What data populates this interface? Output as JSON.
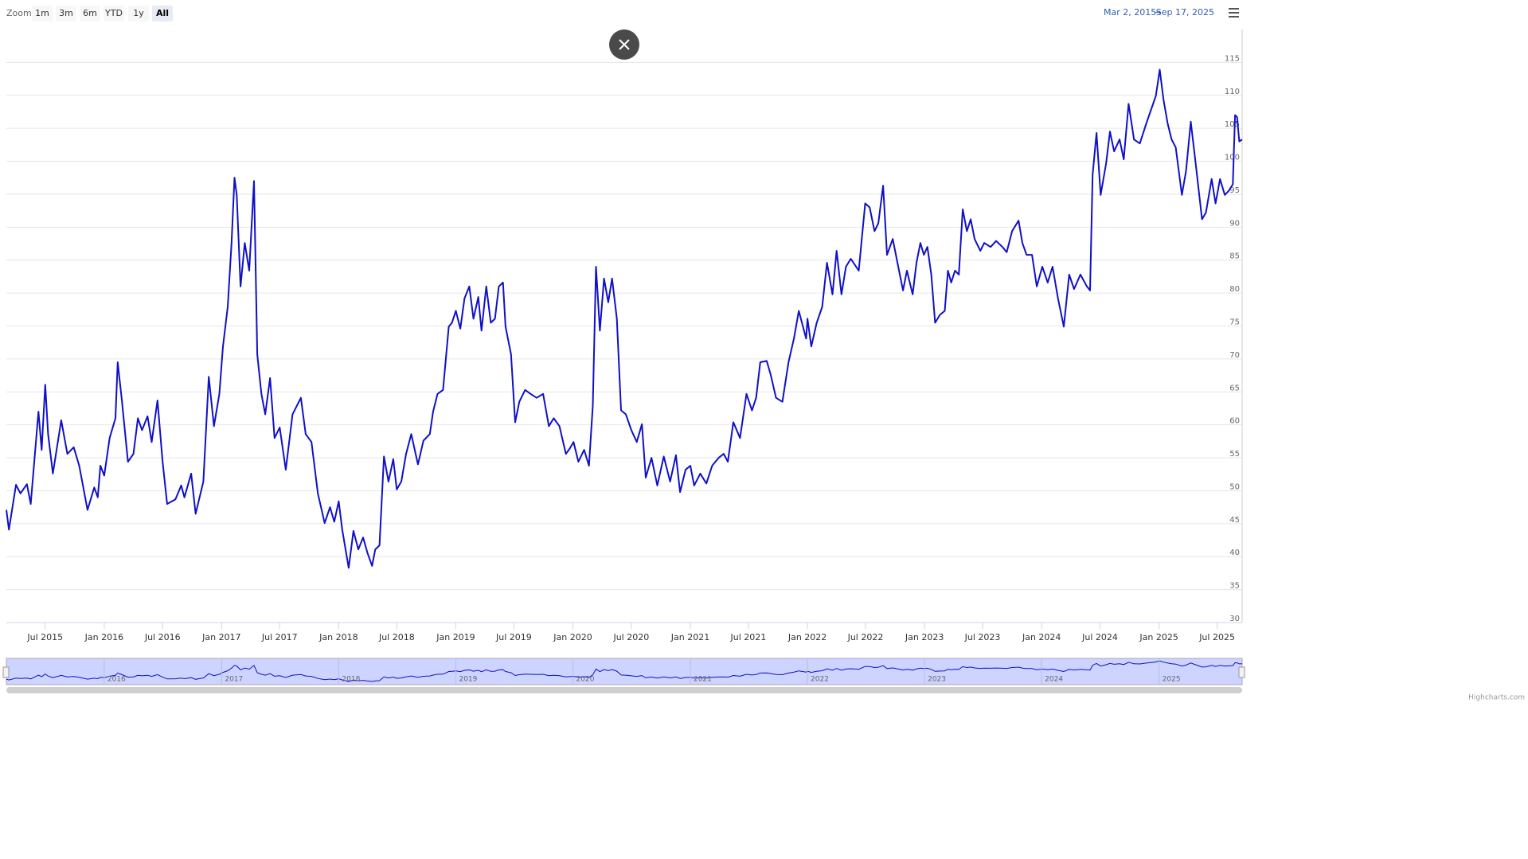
{
  "chart_data": {
    "type": "line",
    "range_selector": {
      "label": "Zoom",
      "buttons": [
        "1m",
        "3m",
        "6m",
        "YTD",
        "1y",
        "All"
      ],
      "selected": 5
    },
    "range_labels": [
      "Mar 2, 2015",
      "→",
      "Sep 17, 2025"
    ],
    "credit": "Highcharts.com",
    "xlim": [
      "2015-03-02",
      "2025-09-17"
    ],
    "ylim": [
      30,
      120
    ],
    "yticks": [
      30,
      35,
      40,
      45,
      50,
      55,
      60,
      65,
      70,
      75,
      80,
      85,
      90,
      95,
      100,
      105,
      110,
      115
    ],
    "grid": true,
    "xticks": [
      {
        "value": "2015-07-01",
        "label": "Jul 2015"
      },
      {
        "value": "2016-01-01",
        "label": "Jan 2016"
      },
      {
        "value": "2016-07-01",
        "label": "Jul 2016"
      },
      {
        "value": "2017-01-01",
        "label": "Jan 2017"
      },
      {
        "value": "2017-07-01",
        "label": "Jul 2017"
      },
      {
        "value": "2018-01-01",
        "label": "Jan 2018"
      },
      {
        "value": "2018-07-01",
        "label": "Jul 2018"
      },
      {
        "value": "2019-01-01",
        "label": "Jan 2019"
      },
      {
        "value": "2019-07-01",
        "label": "Jul 2019"
      },
      {
        "value": "2020-01-01",
        "label": "Jan 2020"
      },
      {
        "value": "2020-07-01",
        "label": "Jul 2020"
      },
      {
        "value": "2021-01-01",
        "label": "Jan 2021"
      },
      {
        "value": "2021-07-01",
        "label": "Jul 2021"
      },
      {
        "value": "2022-01-01",
        "label": "Jan 2022"
      },
      {
        "value": "2022-07-01",
        "label": "Jul 2022"
      },
      {
        "value": "2023-01-01",
        "label": "Jan 2023"
      },
      {
        "value": "2023-07-01",
        "label": "Jul 2023"
      },
      {
        "value": "2024-01-01",
        "label": "Jan 2024"
      },
      {
        "value": "2024-07-01",
        "label": "Jul 2024"
      },
      {
        "value": "2025-01-01",
        "label": "Jan 2025"
      },
      {
        "value": "2025-07-01",
        "label": "Jul 2025"
      }
    ],
    "navigator_ticks": [
      {
        "value": "2016-01-01",
        "label": "2016"
      },
      {
        "value": "2017-01-01",
        "label": "2017"
      },
      {
        "value": "2018-01-01",
        "label": "2018"
      },
      {
        "value": "2019-01-01",
        "label": "2019"
      },
      {
        "value": "2020-01-01",
        "label": "2020"
      },
      {
        "value": "2021-01-01",
        "label": "2021"
      },
      {
        "value": "2022-01-01",
        "label": "2022"
      },
      {
        "value": "2023-01-01",
        "label": "2023"
      },
      {
        "value": "2024-01-01",
        "label": "2024"
      },
      {
        "value": "2025-01-01",
        "label": "2025"
      }
    ],
    "series": [
      {
        "color": "#1010c8",
        "x": [
          "2015-03-02",
          "2015-03-10",
          "2015-04-01",
          "2015-04-15",
          "2015-05-05",
          "2015-05-17",
          "2015-06-10",
          "2015-06-20",
          "2015-07-01",
          "2015-07-10",
          "2015-07-25",
          "2015-08-20",
          "2015-09-08",
          "2015-09-28",
          "2015-10-15",
          "2015-11-10",
          "2015-12-01",
          "2015-12-12",
          "2015-12-20",
          "2016-01-01",
          "2016-01-18",
          "2016-02-05",
          "2016-02-12",
          "2016-02-25",
          "2016-03-15",
          "2016-04-01",
          "2016-04-15",
          "2016-04-28",
          "2016-05-15",
          "2016-05-28",
          "2016-06-15",
          "2016-07-01",
          "2016-07-15",
          "2016-08-10",
          "2016-08-28",
          "2016-09-07",
          "2016-09-28",
          "2016-10-12",
          "2016-11-05",
          "2016-11-22",
          "2016-12-08",
          "2016-12-25",
          "2017-01-05",
          "2017-01-20",
          "2017-02-01",
          "2017-02-10",
          "2017-02-17",
          "2017-03-01",
          "2017-03-14",
          "2017-03-28",
          "2017-04-12",
          "2017-04-22",
          "2017-05-05",
          "2017-05-17",
          "2017-06-01",
          "2017-06-15",
          "2017-07-01",
          "2017-07-20",
          "2017-08-10",
          "2017-09-05",
          "2017-09-20",
          "2017-10-08",
          "2017-10-28",
          "2017-11-18",
          "2017-12-05",
          "2017-12-18",
          "2018-01-01",
          "2018-01-12",
          "2018-02-01",
          "2018-02-16",
          "2018-03-03",
          "2018-03-18",
          "2018-04-01",
          "2018-04-15",
          "2018-04-25",
          "2018-05-08",
          "2018-05-22",
          "2018-06-05",
          "2018-06-20",
          "2018-07-01",
          "2018-07-15",
          "2018-07-30",
          "2018-08-15",
          "2018-09-05",
          "2018-09-22",
          "2018-10-12",
          "2018-10-22",
          "2018-11-05",
          "2018-11-22",
          "2018-12-01",
          "2018-12-10",
          "2018-12-20",
          "2019-01-01",
          "2019-01-15",
          "2019-01-28",
          "2019-02-12",
          "2019-02-25",
          "2019-03-12",
          "2019-03-22",
          "2019-04-06",
          "2019-04-20",
          "2019-05-03",
          "2019-05-15",
          "2019-05-28",
          "2019-06-05",
          "2019-06-22",
          "2019-07-05",
          "2019-07-18",
          "2019-08-05",
          "2019-08-22",
          "2019-09-10",
          "2019-09-30",
          "2019-10-18",
          "2019-11-02",
          "2019-11-20",
          "2019-12-10",
          "2019-12-22",
          "2020-01-03",
          "2020-01-18",
          "2020-02-05",
          "2020-02-20",
          "2020-03-03",
          "2020-03-13",
          "2020-03-25",
          "2020-04-07",
          "2020-04-20",
          "2020-05-02",
          "2020-05-17",
          "2020-05-30",
          "2020-06-14",
          "2020-07-01",
          "2020-07-18",
          "2020-08-03",
          "2020-08-15",
          "2020-09-02",
          "2020-09-20",
          "2020-10-10",
          "2020-10-30",
          "2020-11-17",
          "2020-11-30",
          "2020-12-17",
          "2021-01-01",
          "2021-01-13",
          "2021-02-01",
          "2021-02-20",
          "2021-03-10",
          "2021-03-30",
          "2021-04-15",
          "2021-04-28",
          "2021-05-15",
          "2021-06-05",
          "2021-06-25",
          "2021-07-12",
          "2021-07-25",
          "2021-08-07",
          "2021-08-27",
          "2021-09-08",
          "2021-09-25",
          "2021-10-15",
          "2021-11-03",
          "2021-11-20",
          "2021-12-05",
          "2021-12-28",
          "2022-01-01",
          "2022-01-13",
          "2022-01-30",
          "2022-02-16",
          "2022-03-03",
          "2022-03-20",
          "2022-04-02",
          "2022-04-17",
          "2022-05-01",
          "2022-05-16",
          "2022-06-10",
          "2022-06-30",
          "2022-07-14",
          "2022-07-29",
          "2022-08-10",
          "2022-08-25",
          "2022-09-06",
          "2022-09-24",
          "2022-10-11",
          "2022-10-26",
          "2022-11-07",
          "2022-11-25",
          "2022-12-07",
          "2022-12-19",
          "2022-12-30",
          "2023-01-10",
          "2023-01-22",
          "2023-02-03",
          "2023-02-18",
          "2023-03-05",
          "2023-03-15",
          "2023-03-25",
          "2023-04-06",
          "2023-04-18",
          "2023-04-30",
          "2023-05-13",
          "2023-05-25",
          "2023-06-06",
          "2023-06-24",
          "2023-07-06",
          "2023-07-26",
          "2023-08-12",
          "2023-09-01",
          "2023-09-14",
          "2023-10-01",
          "2023-10-21",
          "2023-11-02",
          "2023-11-15",
          "2023-12-02",
          "2023-12-17",
          "2024-01-03",
          "2024-01-20",
          "2024-02-04",
          "2024-02-21",
          "2024-03-10",
          "2024-03-27",
          "2024-04-11",
          "2024-05-01",
          "2024-05-21",
          "2024-05-31",
          "2024-06-08",
          "2024-06-20",
          "2024-07-03",
          "2024-07-20",
          "2024-08-01",
          "2024-08-14",
          "2024-08-31",
          "2024-09-13",
          "2024-09-28",
          "2024-10-15",
          "2024-11-02",
          "2024-11-22",
          "2024-12-09",
          "2024-12-22",
          "2025-01-03",
          "2025-01-15",
          "2025-01-28",
          "2025-02-09",
          "2025-02-22",
          "2025-03-13",
          "2025-03-26",
          "2025-04-10",
          "2025-04-25",
          "2025-05-15",
          "2025-05-27",
          "2025-06-14",
          "2025-06-26",
          "2025-07-10",
          "2025-07-25",
          "2025-08-06",
          "2025-08-19",
          "2025-08-26",
          "2025-09-01",
          "2025-09-08",
          "2025-09-17"
        ],
        "values": [
          47.1,
          44.1,
          50.9,
          49.6,
          51.0,
          48.0,
          62.0,
          56.2,
          66.1,
          58.6,
          52.6,
          60.7,
          55.6,
          56.6,
          53.8,
          47.1,
          50.5,
          49.0,
          53.8,
          52.3,
          58.0,
          61.0,
          69.5,
          63.8,
          54.4,
          55.6,
          61.0,
          59.2,
          61.3,
          57.4,
          63.7,
          54.4,
          48.0,
          48.7,
          50.8,
          49.0,
          52.6,
          46.5,
          51.4,
          67.3,
          59.8,
          64.7,
          71.9,
          77.9,
          87.6,
          97.5,
          94.9,
          81.0,
          87.6,
          83.4,
          97.0,
          70.7,
          64.7,
          61.6,
          67.1,
          58.0,
          59.6,
          53.2,
          61.6,
          64.1,
          58.6,
          57.4,
          49.6,
          45.1,
          47.5,
          45.3,
          48.4,
          44.1,
          38.3,
          43.9,
          41.1,
          42.9,
          40.5,
          38.6,
          41.1,
          41.7,
          55.2,
          51.4,
          54.8,
          50.2,
          51.4,
          55.6,
          58.6,
          54.0,
          57.6,
          58.6,
          62.0,
          64.7,
          65.3,
          70.1,
          74.9,
          75.5,
          77.3,
          74.6,
          79.2,
          81.0,
          76.1,
          79.4,
          74.3,
          81.0,
          75.5,
          76.1,
          81.0,
          81.6,
          74.9,
          70.7,
          60.4,
          63.5,
          65.3,
          64.7,
          64.1,
          64.7,
          59.8,
          61.0,
          59.8,
          55.6,
          56.4,
          57.4,
          54.4,
          56.2,
          53.8,
          62.9,
          84.0,
          74.3,
          82.2,
          78.6,
          82.2,
          76.1,
          62.2,
          61.6,
          59.2,
          57.4,
          60.1,
          52.0,
          55.0,
          50.8,
          55.2,
          51.4,
          55.4,
          49.8,
          53.2,
          53.8,
          50.8,
          52.6,
          51.1,
          53.8,
          55.0,
          55.6,
          54.4,
          60.4,
          58.0,
          64.7,
          62.2,
          64.1,
          69.5,
          69.7,
          67.7,
          64.1,
          63.5,
          69.5,
          73.1,
          77.3,
          73.1,
          76.1,
          71.9,
          75.5,
          77.9,
          84.6,
          79.8,
          86.4,
          79.8,
          84.0,
          85.2,
          83.4,
          93.6,
          93.0,
          89.4,
          90.6,
          96.3,
          85.8,
          88.2,
          84.0,
          80.4,
          83.4,
          79.8,
          84.6,
          87.6,
          85.8,
          87.0,
          82.8,
          75.5,
          76.7,
          77.3,
          83.4,
          81.6,
          83.4,
          82.8,
          92.7,
          89.4,
          91.2,
          88.2,
          86.4,
          87.6,
          87.0,
          87.9,
          87.0,
          86.2,
          89.4,
          91.0,
          87.6,
          85.8,
          85.8,
          81.0,
          84.0,
          81.6,
          84.0,
          79.2,
          74.9,
          82.8,
          80.6,
          82.8,
          81.0,
          80.4,
          97.9,
          104.3,
          94.9,
          99.7,
          104.5,
          101.5,
          103.3,
          100.3,
          108.7,
          103.3,
          102.7,
          105.7,
          108.1,
          109.9,
          113.9,
          109.3,
          105.7,
          103.3,
          102.1,
          94.9,
          98.5,
          106.0,
          99.7,
          91.2,
          92.2,
          97.3,
          93.6,
          97.3,
          94.9,
          95.5,
          96.5,
          107.0,
          106.7,
          103.0,
          103.3
        ]
      }
    ]
  }
}
